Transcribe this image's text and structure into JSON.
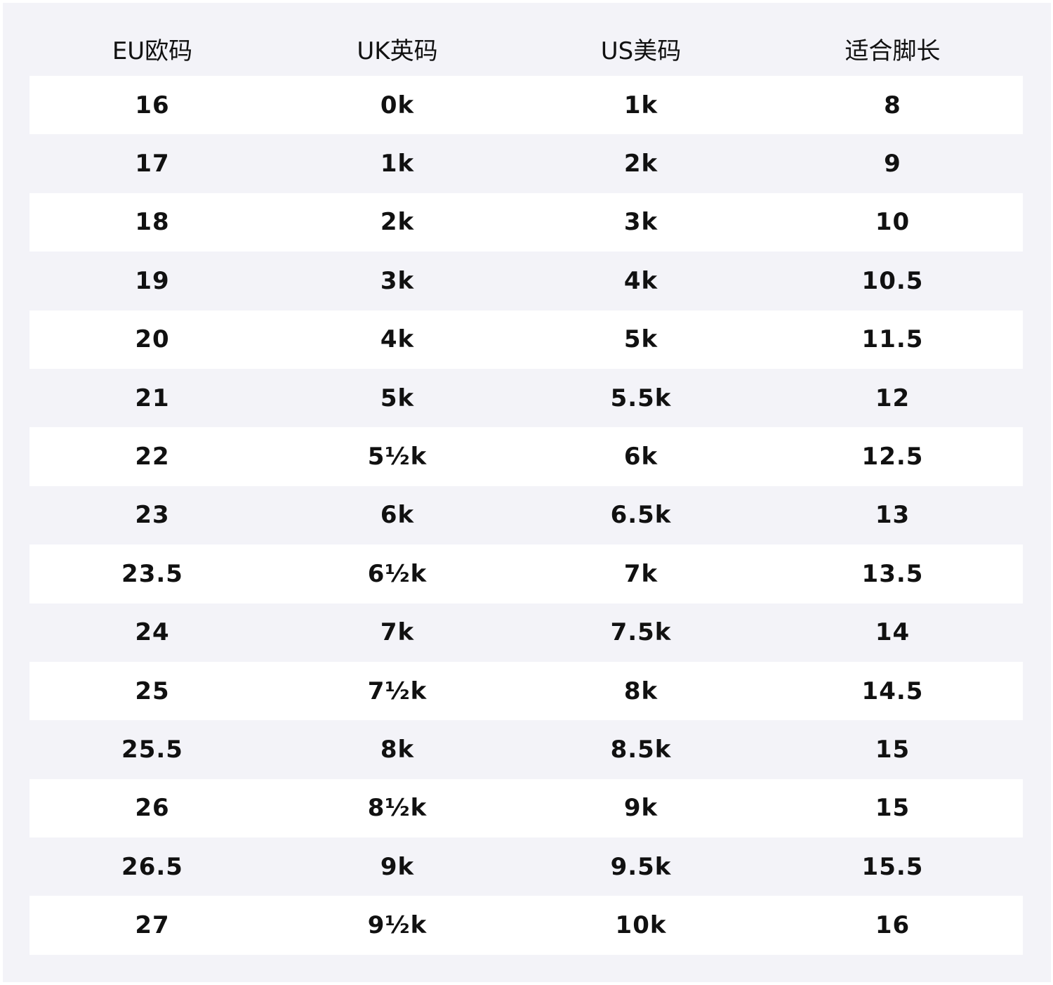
{
  "table": {
    "header": [
      "EU欧码",
      "UK英码",
      "US美码",
      "适合脚长"
    ],
    "rows": [
      [
        "16",
        "0k",
        "1k",
        "8"
      ],
      [
        "17",
        "1k",
        "2k",
        "9"
      ],
      [
        "18",
        "2k",
        "3k",
        "10"
      ],
      [
        "19",
        "3k",
        "4k",
        "10.5"
      ],
      [
        "20",
        "4k",
        "5k",
        "11.5"
      ],
      [
        "21",
        "5k",
        "5.5k",
        "12"
      ],
      [
        "22",
        "5½k",
        "6k",
        "12.5"
      ],
      [
        "23",
        "6k",
        "6.5k",
        "13"
      ],
      [
        "23.5",
        "6½k",
        "7k",
        "13.5"
      ],
      [
        "24",
        "7k",
        "7.5k",
        "14"
      ],
      [
        "25",
        "7½k",
        "8k",
        "14.5"
      ],
      [
        "25.5",
        "8k",
        "8.5k",
        "15"
      ],
      [
        "26",
        "8½k",
        "9k",
        "15"
      ],
      [
        "26.5",
        "9k",
        "9.5k",
        "15.5"
      ],
      [
        "27",
        "9½k",
        "10k",
        "16"
      ]
    ]
  }
}
